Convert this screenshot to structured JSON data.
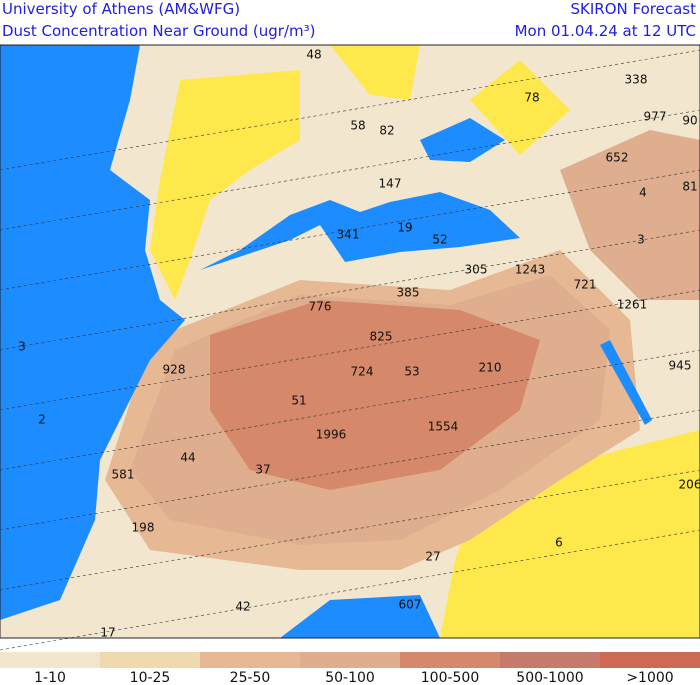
{
  "header": {
    "title": "University of Athens (AM&WFG)",
    "subtitle": "Dust Concentration Near Ground (ugr/m³)",
    "model": "SKIRON Forecast",
    "date": "Mon 01.04.24 at 12 UTC"
  },
  "map": {
    "sea_color": "#1c8cff",
    "land_color": "#ffe84c",
    "labels": [
      "48",
      "338",
      "78",
      "977",
      "90",
      "58",
      "82",
      "652",
      "147",
      "81",
      "4",
      "341",
      "19",
      "52",
      "3",
      "305",
      "1243",
      "721",
      "385",
      "776",
      "1261",
      "825",
      "3",
      "945",
      "928",
      "724",
      "53",
      "210",
      "51",
      "2",
      "1996",
      "1554",
      "44",
      "37",
      "581",
      "206",
      "198",
      "6",
      "27",
      "42",
      "607",
      "17"
    ]
  },
  "legend": [
    {
      "label": "1-10",
      "color": "#f3e6cf"
    },
    {
      "label": "10-25",
      "color": "#eedaae"
    },
    {
      "label": "25-50",
      "color": "#e6b994"
    },
    {
      "label": "50-100",
      "color": "#deae8e"
    },
    {
      "label": "100-500",
      "color": "#d5896a"
    },
    {
      "label": "500-1000",
      "color": "#c67a6c"
    },
    {
      "label": ">1000",
      "color": "#cd6a55"
    }
  ]
}
